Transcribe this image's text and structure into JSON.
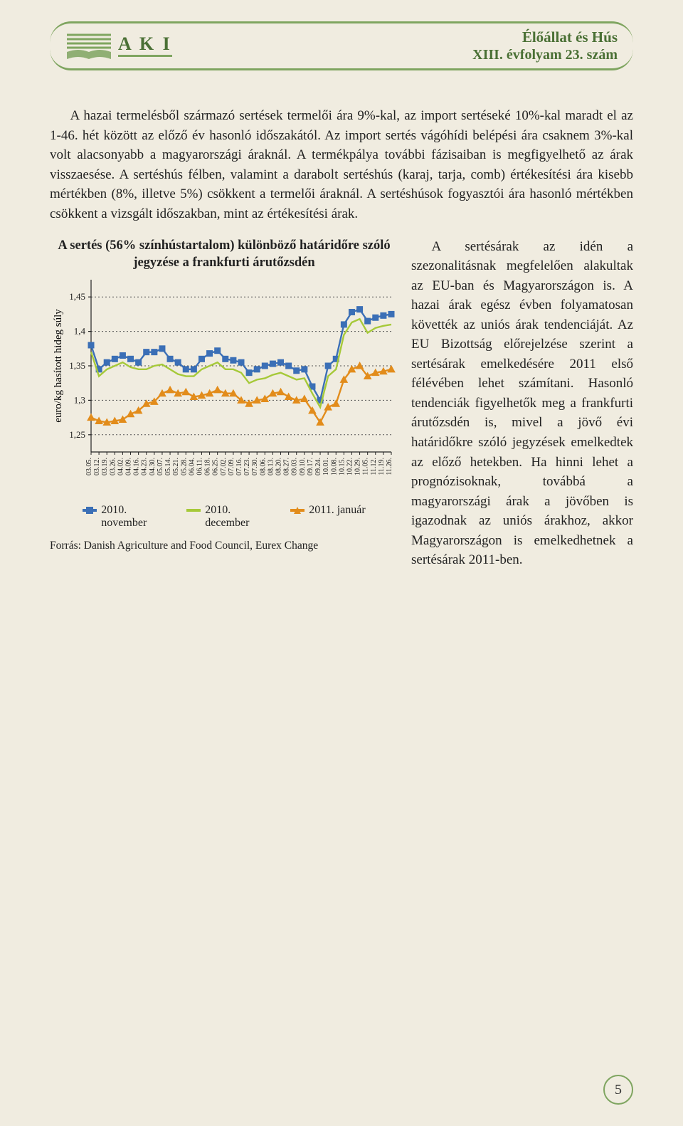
{
  "header": {
    "logo_text": "A K I",
    "title_line1": "Élőállat és Hús",
    "title_line2": "XIII. évfolyam 23. szám",
    "border_color": "#7fa560",
    "logo_color": "#4a7035"
  },
  "paragraph1": "A hazai termelésből származó sertések termelői ára 9%-kal, az import sertéseké 10%-kal maradt el az 1-46. hét között az előző év hasonló időszakától. Az import sertés vágóhídi belépési ára csaknem 3%-kal volt alacsonyabb a magyarországi áraknál. A termékpálya további fázisaiban is megfigyelhető az árak visszaesése. A sertéshús félben, valamint a darabolt sertéshús (karaj, tarja, comb) értékesítési ára kisebb mértékben (8%, illetve 5%) csökkent a termelői áraknál. A sertéshúsok fogyasztói ára hasonló mértékben csökkent a vizsgált időszakban, mint az értékesítési árak.",
  "chart": {
    "title": "A sertés (56% színhústartalom) különböző határidőre szóló jegyzése a frankfurti árutőzsdén",
    "ylabel": "euro/kg hasított hideg súly",
    "ylim": [
      1.225,
      1.475
    ],
    "yticks": [
      1.25,
      1.3,
      1.35,
      1.4,
      1.45
    ],
    "ytick_labels": [
      "1,25",
      "1,3",
      "1,35",
      "1,4",
      "1,45"
    ],
    "x_categories": [
      "03.05.",
      "03.12.",
      "03.19.",
      "03.26.",
      "04.02.",
      "04.09.",
      "04.16.",
      "04.23.",
      "04.30.",
      "05.07.",
      "05.14.",
      "05.21.",
      "05.28.",
      "06.04.",
      "06.11.",
      "06.18.",
      "06.25.",
      "07.02.",
      "07.09.",
      "07.16.",
      "07.23.",
      "07.30.",
      "08.06.",
      "08.13.",
      "08.20.",
      "08.27.",
      "09.03.",
      "09.10.",
      "09.17.",
      "09.24.",
      "10.01.",
      "10.08.",
      "10.15.",
      "10.22.",
      "10.29.",
      "11.05.",
      "11.12.",
      "11.19.",
      "11.26."
    ],
    "series": [
      {
        "name": "series_nov",
        "label": "2010. november",
        "color": "#3b6fb6",
        "marker": "square",
        "values": [
          1.38,
          1.345,
          1.355,
          1.36,
          1.365,
          1.36,
          1.355,
          1.37,
          1.37,
          1.375,
          1.36,
          1.355,
          1.345,
          1.345,
          1.36,
          1.368,
          1.372,
          1.36,
          1.358,
          1.355,
          1.34,
          1.345,
          1.35,
          1.353,
          1.355,
          1.35,
          1.343,
          1.345,
          1.32,
          1.3,
          1.35,
          1.36,
          1.41,
          1.428,
          1.432,
          1.415,
          1.42,
          1.423,
          1.425
        ]
      },
      {
        "name": "series_dec",
        "label": "2010. december",
        "color": "#a6c939",
        "marker": "none",
        "values": [
          1.37,
          1.335,
          1.345,
          1.35,
          1.355,
          1.348,
          1.345,
          1.345,
          1.35,
          1.352,
          1.345,
          1.338,
          1.335,
          1.335,
          1.345,
          1.35,
          1.355,
          1.345,
          1.345,
          1.34,
          1.325,
          1.33,
          1.332,
          1.337,
          1.34,
          1.335,
          1.33,
          1.332,
          1.31,
          1.29,
          1.335,
          1.345,
          1.395,
          1.413,
          1.418,
          1.398,
          1.405,
          1.408,
          1.41
        ]
      },
      {
        "name": "series_jan",
        "label": "2011. január",
        "color": "#e28c1b",
        "marker": "triangle",
        "values": [
          1.275,
          1.27,
          1.268,
          1.27,
          1.272,
          1.28,
          1.285,
          1.295,
          1.298,
          1.31,
          1.315,
          1.31,
          1.312,
          1.305,
          1.307,
          1.31,
          1.315,
          1.31,
          1.31,
          1.3,
          1.295,
          1.3,
          1.302,
          1.31,
          1.312,
          1.305,
          1.3,
          1.302,
          1.285,
          1.268,
          1.29,
          1.295,
          1.33,
          1.345,
          1.35,
          1.335,
          1.34,
          1.342,
          1.345
        ]
      }
    ],
    "grid_color": "#555555",
    "background": "#f0ece0",
    "source_label": "Forrás: Danish Agriculture and Food Council, Eurex Change"
  },
  "paragraph2": "A sertésárak az idén a szezonalitásnak megfelelően alakultak az EU-ban és Magyarországon is. A hazai árak egész évben folyamatosan követték az uniós árak tendenciáját. Az EU Bizottság előrejelzése szerint a sertésárak emelkedésére 2011 első félévében lehet számítani. Hasonló tendenciák figyelhetők meg a frankfurti árutőzsdén is, mivel a jövő évi határidőkre szóló jegyzések emelkedtek az előző hetekben. Ha hinni lehet a prognózisoknak, továbbá a magyarországi árak a jövőben is igazodnak az uniós árakhoz, akkor Magyarországon is emelkedhetnek a sertésárak 2011-ben.",
  "page_number": "5"
}
